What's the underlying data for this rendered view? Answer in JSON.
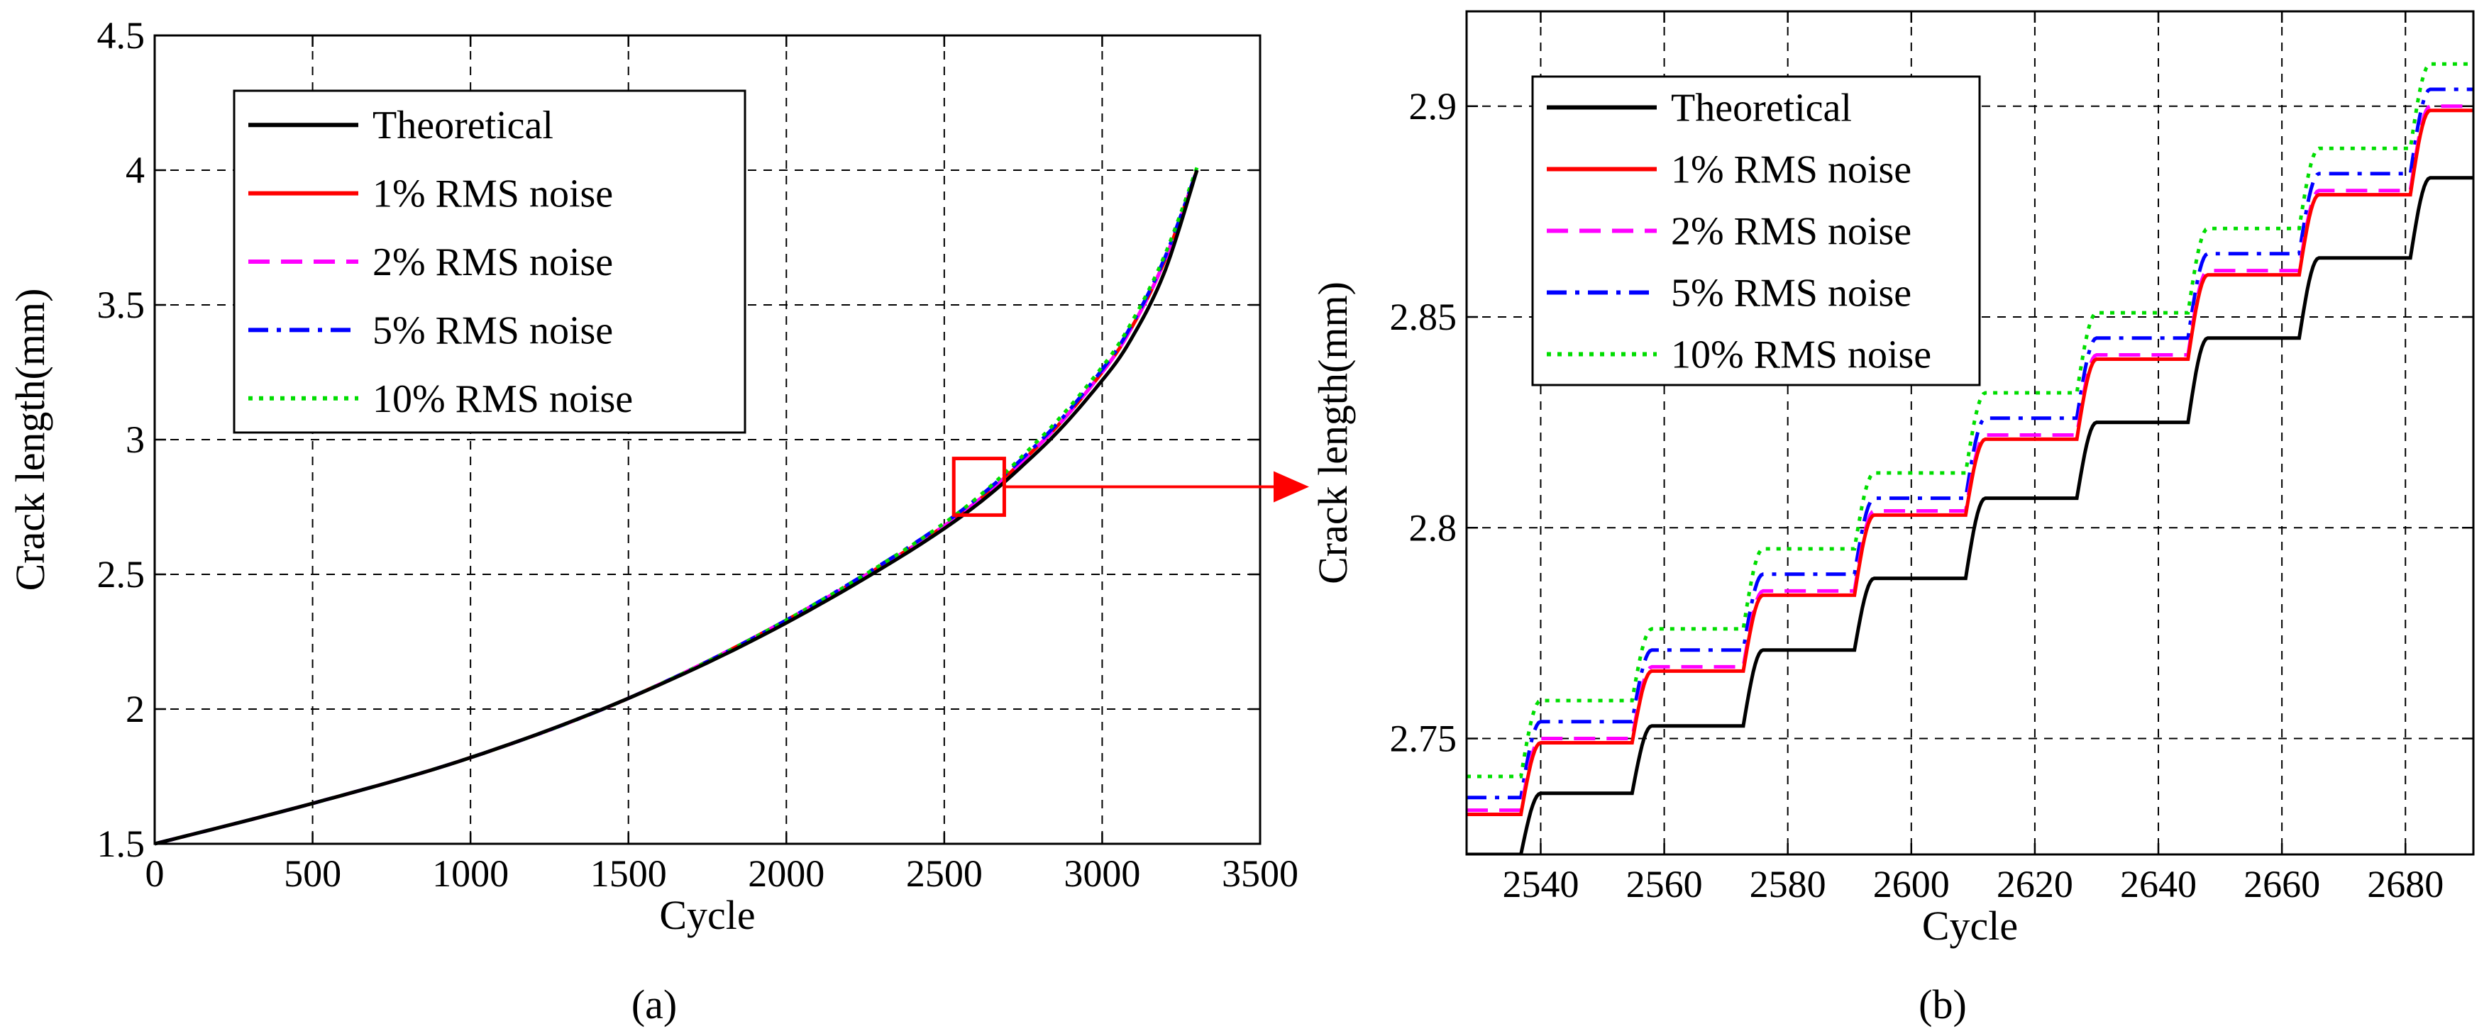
{
  "figure": {
    "panels": [
      "(a)",
      "(b)"
    ]
  },
  "chart_data": [
    {
      "type": "line",
      "panel_label": "(a)",
      "xlabel": "Cycle",
      "ylabel": "Crack length(mm)",
      "xlim": [
        0,
        3500
      ],
      "ylim": [
        1.5,
        4.5
      ],
      "xticks": [
        "0",
        "500",
        "1000",
        "1500",
        "2000",
        "2500",
        "3000",
        "3500"
      ],
      "yticks": [
        "1.5",
        "2",
        "2.5",
        "3",
        "3.5",
        "4",
        "4.5"
      ],
      "grid": true,
      "legend_position": "top-left",
      "series": [
        {
          "name": "Theoretical",
          "color": "#000000",
          "dash": "solid",
          "x": [
            0,
            500,
            1000,
            1500,
            2000,
            2500,
            2800,
            3000,
            3100,
            3200,
            3300
          ],
          "y": [
            1.5,
            1.65,
            1.82,
            2.04,
            2.32,
            2.67,
            2.96,
            3.22,
            3.39,
            3.63,
            4.0
          ]
        },
        {
          "name": "1% RMS noise",
          "color": "#ff0000",
          "dash": "solid",
          "x": [
            0,
            500,
            1000,
            1500,
            2000,
            2500,
            2800,
            3000,
            3100,
            3200,
            3300
          ],
          "y": [
            1.5,
            1.65,
            1.82,
            2.04,
            2.33,
            2.68,
            2.98,
            3.25,
            3.43,
            3.67,
            4.0
          ]
        },
        {
          "name": "2% RMS noise",
          "color": "#ff00ff",
          "dash": "dashed",
          "x": [
            0,
            500,
            1000,
            1500,
            2000,
            2500,
            2800,
            3000,
            3100,
            3200,
            3300
          ],
          "y": [
            1.5,
            1.65,
            1.82,
            2.04,
            2.33,
            2.68,
            2.98,
            3.25,
            3.43,
            3.67,
            4.0
          ]
        },
        {
          "name": "5% RMS noise",
          "color": "#0000ff",
          "dash": "dashdot",
          "x": [
            0,
            500,
            1000,
            1500,
            2000,
            2500,
            2800,
            3000,
            3100,
            3200,
            3300
          ],
          "y": [
            1.5,
            1.65,
            1.82,
            2.04,
            2.33,
            2.69,
            2.99,
            3.26,
            3.44,
            3.68,
            4.0
          ]
        },
        {
          "name": "10% RMS noise",
          "color": "#00dd00",
          "dash": "dotted",
          "x": [
            0,
            500,
            1000,
            1500,
            2000,
            2500,
            2800,
            3000,
            3100,
            3200,
            3300
          ],
          "y": [
            1.5,
            1.65,
            1.82,
            2.04,
            2.33,
            2.69,
            3.0,
            3.27,
            3.45,
            3.69,
            4.01
          ]
        }
      ],
      "annotation": {
        "type": "zoom-box",
        "x_range": [
          2530,
          2690
        ],
        "y_range": [
          2.72,
          2.93
        ],
        "arrow_to": "(b)"
      }
    },
    {
      "type": "line",
      "panel_label": "(b)",
      "xlabel": "Cycle",
      "ylabel": "Crack length(mm)",
      "xlim": [
        2528,
        2691
      ],
      "ylim": [
        2.7225,
        2.9225
      ],
      "xticks": [
        "2540",
        "2560",
        "2580",
        "2600",
        "2620",
        "2640",
        "2660",
        "2680"
      ],
      "yticks": [
        "2.75",
        "2.8",
        "2.85",
        "2.9"
      ],
      "grid": true,
      "legend_position": "top-left",
      "step_cycles": [
        2538,
        2556,
        2574,
        2592,
        2610,
        2628,
        2646,
        2664,
        2682
      ],
      "series": [
        {
          "name": "Theoretical",
          "color": "#000000",
          "dash": "solid",
          "levels": [
            2.7225,
            2.737,
            2.753,
            2.771,
            2.788,
            2.807,
            2.825,
            2.845,
            2.864,
            2.883
          ]
        },
        {
          "name": "1% RMS noise",
          "color": "#ff0000",
          "dash": "solid",
          "levels": [
            2.732,
            2.749,
            2.766,
            2.784,
            2.803,
            2.821,
            2.84,
            2.86,
            2.879,
            2.899
          ]
        },
        {
          "name": "2% RMS noise",
          "color": "#ff00ff",
          "dash": "dashed",
          "levels": [
            2.733,
            2.75,
            2.767,
            2.785,
            2.804,
            2.822,
            2.841,
            2.861,
            2.88,
            2.9
          ]
        },
        {
          "name": "5% RMS noise",
          "color": "#0000ff",
          "dash": "dashdot",
          "levels": [
            2.736,
            2.754,
            2.771,
            2.789,
            2.807,
            2.826,
            2.845,
            2.865,
            2.884,
            2.904
          ]
        },
        {
          "name": "10% RMS noise",
          "color": "#00dd00",
          "dash": "dotted",
          "levels": [
            2.741,
            2.759,
            2.776,
            2.795,
            2.813,
            2.832,
            2.851,
            2.871,
            2.89,
            2.91
          ]
        }
      ]
    }
  ]
}
